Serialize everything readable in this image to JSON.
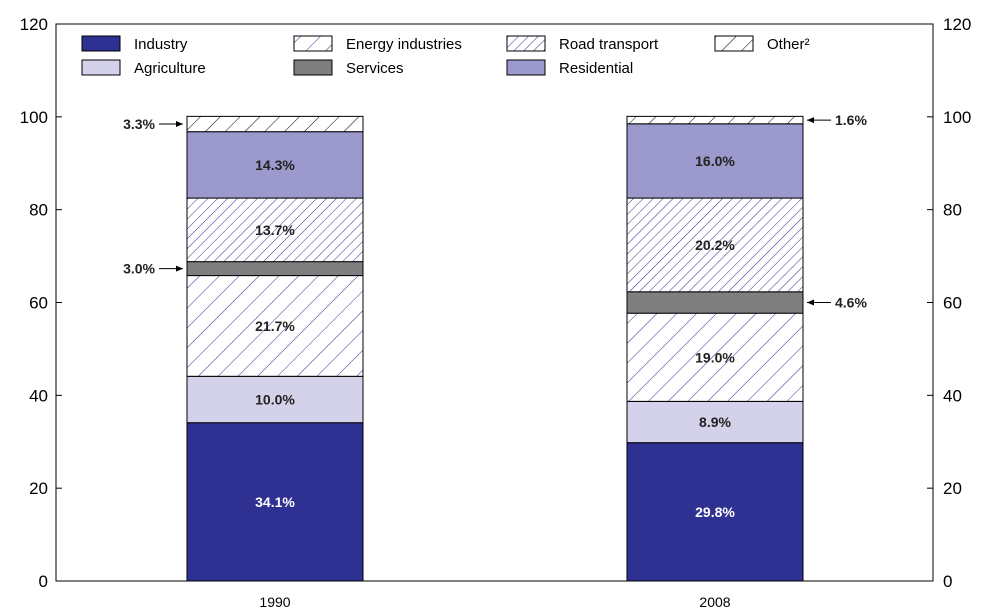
{
  "chart_data": {
    "type": "bar",
    "stacked": true,
    "categories": [
      "1990",
      "2008"
    ],
    "ylim": [
      0,
      120
    ],
    "y_ticks": [
      0,
      20,
      40,
      60,
      80,
      100,
      120
    ],
    "grid": false,
    "legend_position": "top",
    "series": [
      {
        "name": "Industry",
        "color": "#2e3192",
        "fill": "solid",
        "values": [
          34.1,
          29.8
        ],
        "labels": [
          "34.1%",
          "29.8%"
        ],
        "label_color": "#ffffff"
      },
      {
        "name": "Agriculture",
        "color": "#d4d2ea",
        "fill": "solid",
        "values": [
          10.0,
          8.9
        ],
        "labels": [
          "10.0%",
          "8.9%"
        ],
        "label_color": "#222222"
      },
      {
        "name": "Energy industries",
        "color": "#2e3192",
        "fill": "hatch-wide",
        "values": [
          21.7,
          19.0
        ],
        "labels": [
          "21.7%",
          "19.0%"
        ],
        "label_color": "#222222"
      },
      {
        "name": "Services",
        "color": "#7f7f7f",
        "fill": "solid",
        "values": [
          3.0,
          4.6
        ],
        "labels": [
          "3.0%",
          "4.6%"
        ],
        "label_color": "#222222"
      },
      {
        "name": "Road transport",
        "color": "#2e3192",
        "fill": "hatch-dense",
        "values": [
          13.7,
          20.2
        ],
        "labels": [
          "13.7%",
          "20.2%"
        ],
        "label_color": "#222222"
      },
      {
        "name": "Residential",
        "color": "#9c99cc",
        "fill": "solid",
        "values": [
          14.3,
          16.0
        ],
        "labels": [
          "14.3%",
          "16.0%"
        ],
        "label_color": "#222222"
      },
      {
        "name": "Other²",
        "color": "#000000",
        "fill": "hatch-wide",
        "values": [
          3.3,
          1.6
        ],
        "labels": [
          "3.3%",
          "1.6%"
        ],
        "label_color": "#222222"
      }
    ],
    "legend_order": [
      "Industry",
      "Energy industries",
      "Road transport",
      "Other²",
      "Agriculture",
      "Services",
      "Residential"
    ]
  }
}
